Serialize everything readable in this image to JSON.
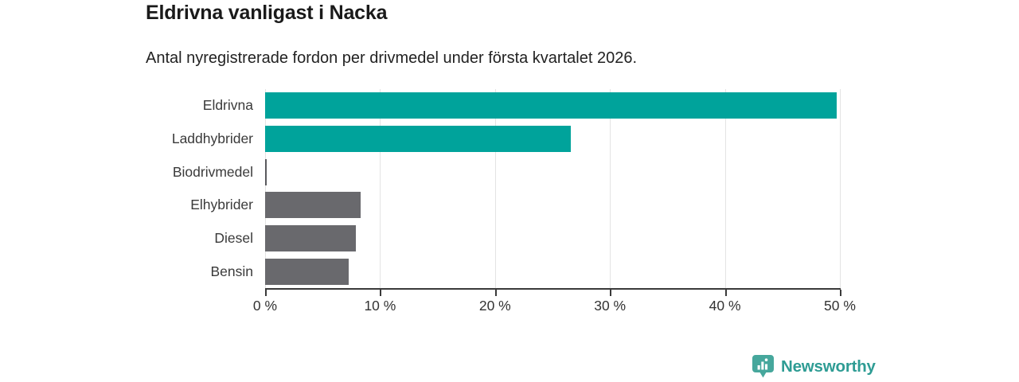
{
  "header": {
    "title": "Eldrivna vanligast i Nacka",
    "subtitle": "Antal nyregistrerade fordon per drivmedel under första kvartalet 2026."
  },
  "chart_data": {
    "type": "bar",
    "orientation": "horizontal",
    "categories": [
      "Eldrivna",
      "Laddhybrider",
      "Biodrivmedel",
      "Elhybrider",
      "Diesel",
      "Bensin"
    ],
    "values": [
      49.7,
      26.6,
      0.1,
      8.3,
      7.9,
      7.3
    ],
    "unit": "%",
    "bar_colors": [
      "#00a39b",
      "#00a39b",
      "#5a5a5e",
      "#69696d",
      "#69696d",
      "#69696d"
    ],
    "accent_color": "#00a39b",
    "muted_color": "#69696d",
    "title": "Eldrivna vanligast i Nacka",
    "subtitle": "Antal nyregistrerade fordon per drivmedel under första kvartalet 2026.",
    "xlabel": "",
    "ylabel": "",
    "xlim": [
      0,
      50
    ],
    "xticks": [
      0,
      10,
      20,
      30,
      40,
      50
    ],
    "xtick_labels": [
      "0 %",
      "10 %",
      "20 %",
      "30 %",
      "40 %",
      "50 %"
    ],
    "grid": true,
    "legend": false
  },
  "footer": {
    "brand": "Newsworthy",
    "brand_color": "#2e9c94",
    "badge_color": "#46a79c"
  }
}
